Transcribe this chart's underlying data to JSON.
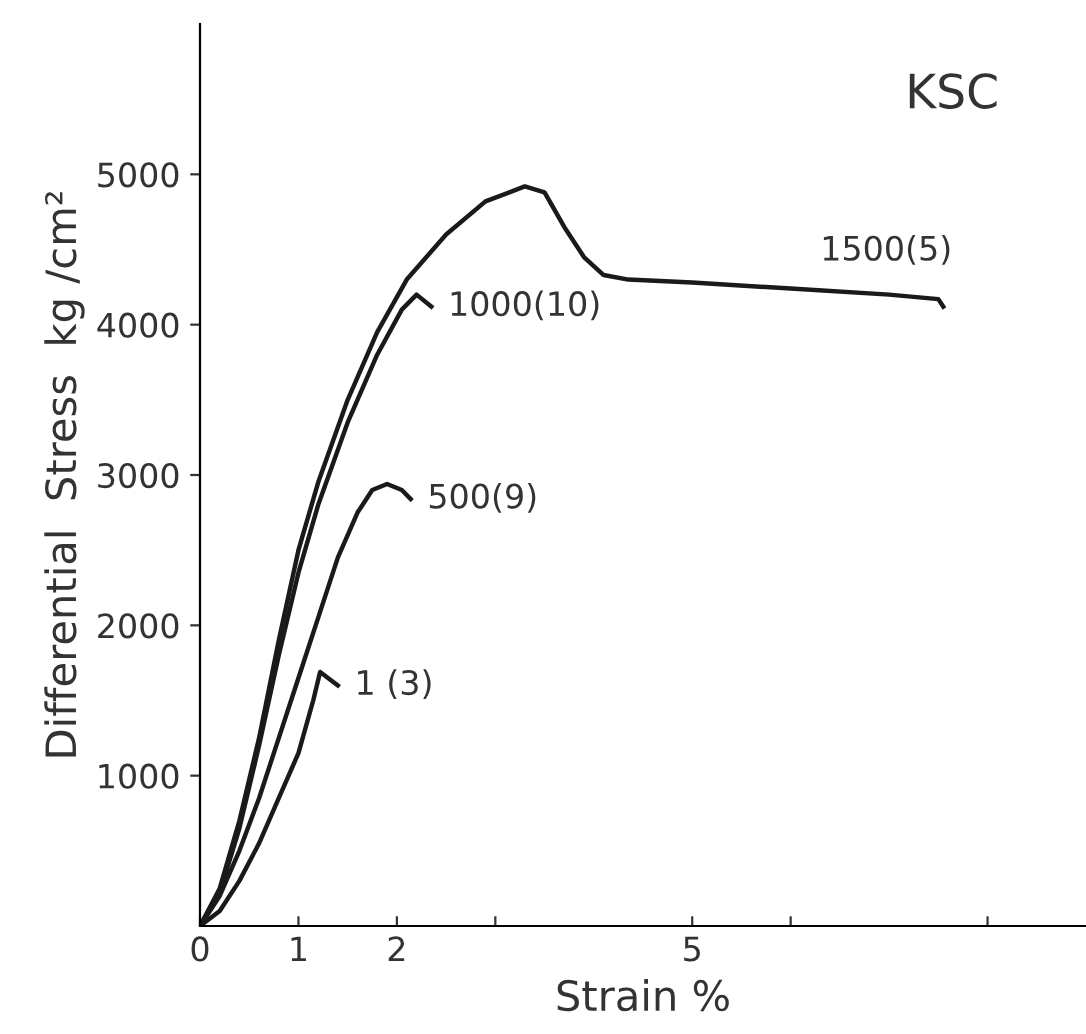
{
  "chart_data": {
    "type": "line",
    "xlabel": "Strain %",
    "ylabel": "Differential  Stress  kg /cm²",
    "xlim": [
      0,
      9
    ],
    "ylim": [
      0,
      6000
    ],
    "xticks": [
      0,
      1,
      2,
      {
        "value": 3,
        "label": null
      },
      5,
      {
        "value": 6,
        "label": null
      },
      {
        "value": 8,
        "label": null
      }
    ],
    "yticks": [
      1000,
      2000,
      3000,
      4000,
      5000
    ],
    "grid": false,
    "legend": false,
    "marker": "none",
    "line_style": "solid",
    "series": [
      {
        "color": "#1a1a1a",
        "x": [
          0,
          0.2,
          0.4,
          0.6,
          0.8,
          1.0,
          1.2,
          1.5,
          1.8,
          2.1,
          2.5,
          2.9,
          3.3,
          3.5,
          3.7,
          3.9,
          4.1,
          4.35,
          5,
          6,
          7,
          7.5,
          7.55
        ],
        "values": [
          0,
          250,
          700,
          1250,
          1900,
          2500,
          2950,
          3500,
          3950,
          4300,
          4600,
          4820,
          4920,
          4880,
          4650,
          4450,
          4330,
          4300,
          4280,
          4240,
          4200,
          4170,
          4120
        ]
      },
      {
        "color": "#1a1a1a",
        "x": [
          0,
          0.2,
          0.4,
          0.6,
          0.8,
          1.0,
          1.2,
          1.5,
          1.8,
          2.05,
          2.2,
          2.35
        ],
        "values": [
          0,
          220,
          650,
          1200,
          1800,
          2350,
          2800,
          3350,
          3800,
          4100,
          4200,
          4120
        ]
      },
      {
        "color": "#1a1a1a",
        "x": [
          0,
          0.2,
          0.4,
          0.6,
          0.8,
          1.0,
          1.2,
          1.4,
          1.6,
          1.75,
          1.9,
          2.05,
          2.14
        ],
        "values": [
          0,
          200,
          500,
          850,
          1250,
          1650,
          2050,
          2450,
          2750,
          2900,
          2940,
          2900,
          2840
        ]
      },
      {
        "color": "#1a1a1a",
        "x": [
          0,
          0.2,
          0.4,
          0.6,
          0.8,
          1.0,
          1.15,
          1.22,
          1.3,
          1.4
        ],
        "values": [
          0,
          100,
          300,
          550,
          850,
          1150,
          1500,
          1690,
          1650,
          1600
        ]
      }
    ],
    "annotations": [
      "KSC",
      {
        "text": "1500(5)",
        "x": 6.3,
        "y": 4230
      },
      {
        "text": "1000(10)",
        "x": 2.35,
        "y": 4120
      },
      {
        "text": "500(9)",
        "x": 2.14,
        "y": 2840
      },
      {
        "text": "1 (3)",
        "x": 1.4,
        "y": 1600
      }
    ]
  }
}
